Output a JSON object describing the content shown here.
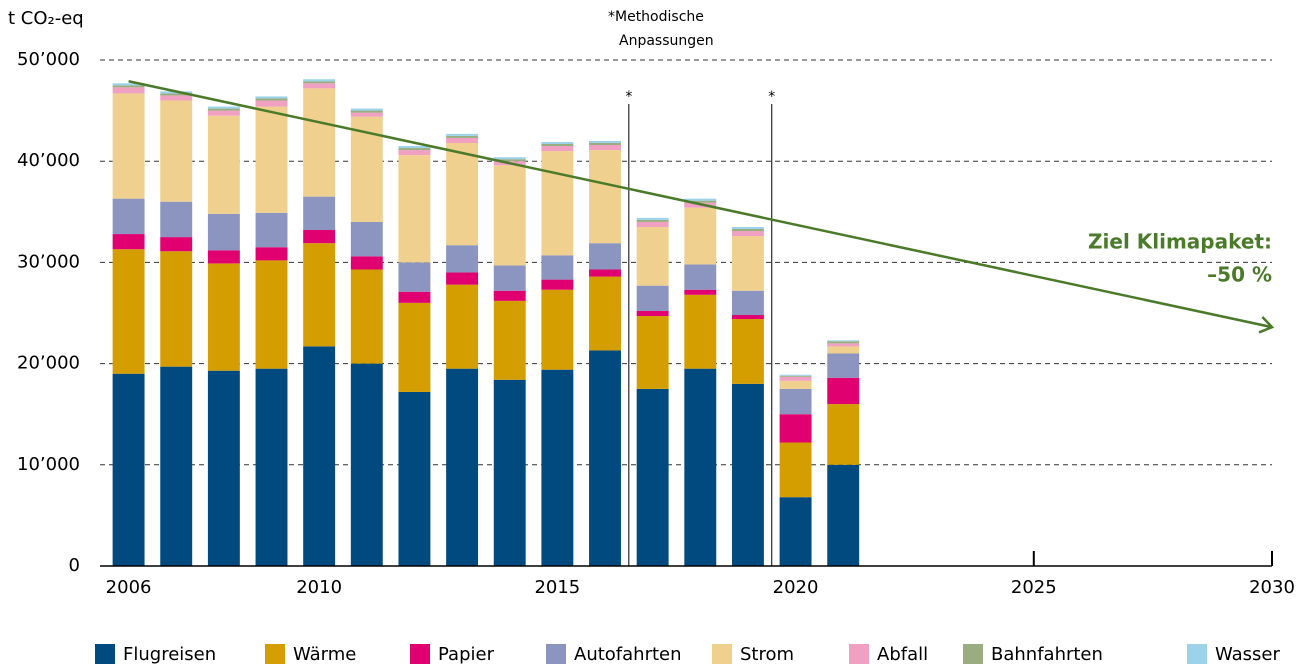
{
  "chart_data": {
    "type": "bar",
    "stacked": true,
    "y_label": "t CO₂-eq",
    "x": [
      2006,
      2007,
      2008,
      2009,
      2010,
      2011,
      2012,
      2013,
      2014,
      2015,
      2016,
      2017,
      2018,
      2019,
      2020,
      2021
    ],
    "xlim": [
      2005.4,
      2030
    ],
    "xticks": [
      2006,
      2010,
      2015,
      2020,
      2025,
      2030
    ],
    "ylim": [
      0,
      50000
    ],
    "yticks": [
      0,
      {
        "value": 10000,
        "label": "10’000"
      },
      {
        "value": 20000,
        "label": "20’000"
      },
      {
        "value": 30000,
        "label": "30’000"
      },
      {
        "value": 40000,
        "label": "40’000"
      },
      {
        "value": 50000,
        "label": "50’000"
      }
    ],
    "grid": true,
    "legend": "bottom",
    "series": [
      {
        "name": "Flugreisen",
        "color": "#004a80",
        "values": [
          19000,
          19700,
          19300,
          19500,
          21700,
          20000,
          17200,
          19500,
          18400,
          19400,
          21300,
          17500,
          19500,
          18000,
          6800,
          10000
        ]
      },
      {
        "name": "Wärme",
        "color": "#d49e00",
        "values": [
          12300,
          11400,
          10600,
          10700,
          10200,
          9300,
          8800,
          8300,
          7800,
          7900,
          7300,
          7200,
          7300,
          6400,
          5400,
          6000
        ]
      },
      {
        "name": "Papier",
        "color": "#e0006f",
        "values": [
          1500,
          1400,
          1300,
          1300,
          1300,
          1300,
          1100,
          1200,
          1000,
          1000,
          700,
          500,
          500,
          400,
          2800,
          2600
        ]
      },
      {
        "name": "Autofahrten",
        "color": "#8b95bf",
        "values": [
          3500,
          3500,
          3600,
          3400,
          3300,
          3400,
          2900,
          2700,
          2500,
          2400,
          2600,
          2500,
          2500,
          2400,
          2500,
          2400
        ]
      },
      {
        "name": "Strom",
        "color": "#efd08e",
        "values": [
          10400,
          10000,
          9700,
          10500,
          10700,
          10400,
          10600,
          10100,
          9900,
          10300,
          9200,
          5800,
          5600,
          5400,
          800,
          700
        ]
      },
      {
        "name": "Abfall",
        "color": "#f0a0c0",
        "values": [
          600,
          500,
          500,
          600,
          500,
          400,
          500,
          500,
          400,
          500,
          500,
          500,
          500,
          500,
          400,
          300
        ]
      },
      {
        "name": "Bahnfahrten",
        "color": "#99ad80",
        "values": [
          200,
          200,
          200,
          200,
          200,
          200,
          200,
          200,
          200,
          200,
          200,
          200,
          200,
          200,
          100,
          200
        ]
      },
      {
        "name": "Wasser",
        "color": "#9cd3eb",
        "values": [
          200,
          200,
          200,
          200,
          200,
          200,
          200,
          200,
          200,
          200,
          200,
          200,
          200,
          200,
          100,
          100
        ]
      }
    ],
    "trend": {
      "x": [
        2006,
        2030
      ],
      "values": [
        47900,
        23600
      ],
      "color": "#4a7a2a",
      "label": [
        "Ziel Klimapaket:",
        "–50 %"
      ]
    },
    "markers": [
      {
        "x": 2016.5,
        "label": "*"
      },
      {
        "x": 2019.5,
        "label": "*"
      }
    ],
    "note": [
      "*Methodische",
      "Anpassungen"
    ]
  }
}
